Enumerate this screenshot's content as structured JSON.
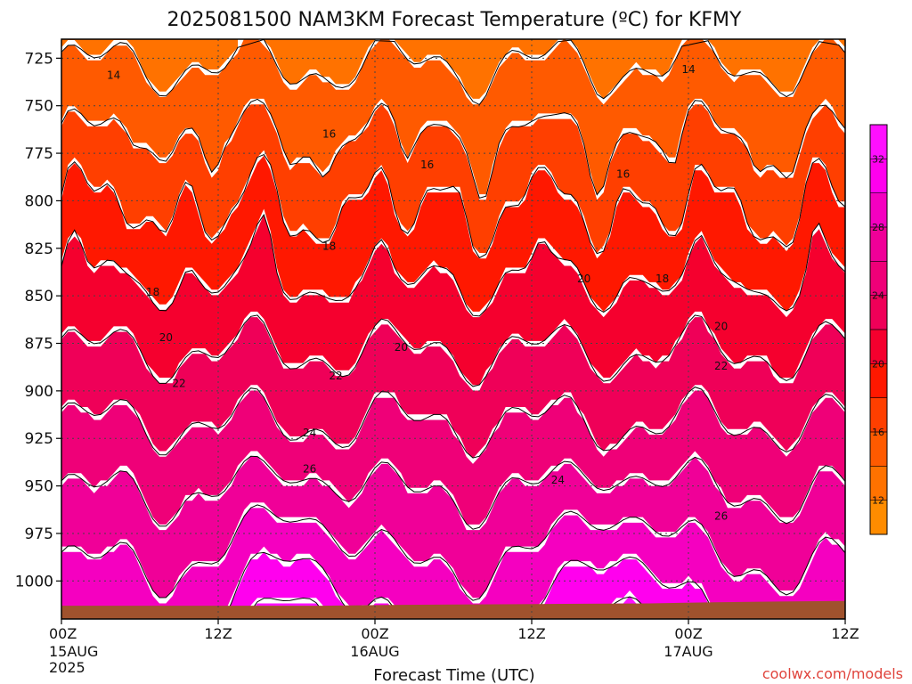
{
  "chart_data": {
    "type": "heatmap",
    "title": "2025081500 NAM3KM Forecast Temperature (ºC) for KFMY",
    "xlabel": "Forecast Time (UTC)",
    "ylabel": "",
    "y_axis": {
      "unit": "hPa",
      "reversed": true,
      "range": [
        1020,
        715
      ],
      "ticks": [
        725,
        750,
        775,
        800,
        825,
        850,
        875,
        900,
        925,
        950,
        975,
        1000
      ]
    },
    "x_axis": {
      "unit": "forecast hour",
      "range": [
        0,
        60
      ],
      "ticks": [
        {
          "h": 0,
          "label": "00Z",
          "sub": "15AUG",
          "sub2": "2025"
        },
        {
          "h": 12,
          "label": "12Z",
          "sub": "",
          "sub2": ""
        },
        {
          "h": 24,
          "label": "00Z",
          "sub": "16AUG",
          "sub2": ""
        },
        {
          "h": 36,
          "label": "12Z",
          "sub": "",
          "sub2": ""
        },
        {
          "h": 48,
          "label": "00Z",
          "sub": "17AUG",
          "sub2": ""
        },
        {
          "h": 60,
          "label": "12Z",
          "sub": "",
          "sub2": ""
        }
      ]
    },
    "grid": true,
    "colorbar": {
      "placement": "right",
      "levels": [
        12,
        14,
        16,
        18,
        20,
        22,
        24,
        26,
        28,
        30,
        32
      ],
      "colors": [
        "#ff8c00",
        "#ff7200",
        "#ff5a00",
        "#ff3f00",
        "#ff1800",
        "#f5002e",
        "#ef0058",
        "#ef0078",
        "#f00098",
        "#f500c0",
        "#ff00ee",
        "#ff10ff"
      ]
    },
    "contour_labels": [
      {
        "value": "14",
        "h": 4.0,
        "p": 734
      },
      {
        "value": "14",
        "h": 48.0,
        "p": 731
      },
      {
        "value": "16",
        "h": 20.5,
        "p": 765
      },
      {
        "value": "16",
        "h": 28.0,
        "p": 781
      },
      {
        "value": "16",
        "h": 43.0,
        "p": 786
      },
      {
        "value": "18",
        "h": 20.5,
        "p": 824
      },
      {
        "value": "18",
        "h": 7.0,
        "p": 848
      },
      {
        "value": "18",
        "h": 46.0,
        "p": 841
      },
      {
        "value": "20",
        "h": 8.0,
        "p": 872
      },
      {
        "value": "20",
        "h": 26.0,
        "p": 877
      },
      {
        "value": "20",
        "h": 40.0,
        "p": 841
      },
      {
        "value": "20",
        "h": 50.5,
        "p": 866
      },
      {
        "value": "22",
        "h": 9.0,
        "p": 896
      },
      {
        "value": "22",
        "h": 21.0,
        "p": 892
      },
      {
        "value": "22",
        "h": 50.5,
        "p": 887
      },
      {
        "value": "24",
        "h": 19.0,
        "p": 922
      },
      {
        "value": "24",
        "h": 38.0,
        "p": 947
      },
      {
        "value": "26",
        "h": 19.0,
        "p": 941
      },
      {
        "value": "26",
        "h": 50.5,
        "p": 966
      }
    ],
    "surface_pressure_hpa": [
      1013,
      1013,
      1013,
      1013,
      1013,
      1012.6,
      1012.4,
      1012.2,
      1012.0,
      1011.8,
      1011.2,
      1010.8,
      1010.5
    ]
  },
  "credit": "coolwx.com/models"
}
